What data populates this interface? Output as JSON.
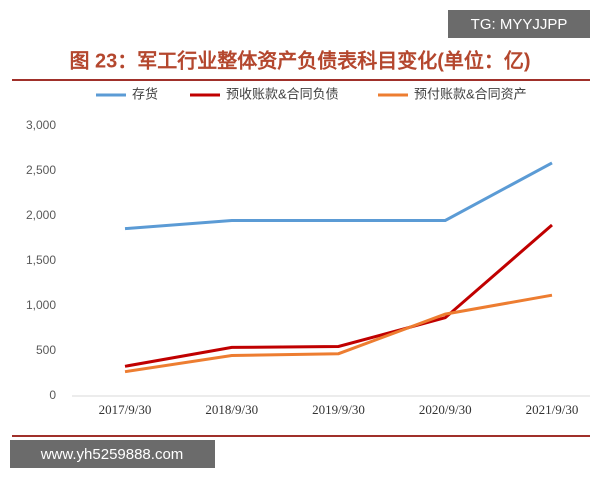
{
  "chart_data": {
    "type": "line",
    "title": "图 23：军工行业整体资产负债表科目变化(单位：亿)",
    "annotations": [
      "TG: MYYJJPP",
      "www.yh5259888.com"
    ],
    "categories": [
      "2017/9/30",
      "2018/9/30",
      "2019/9/30",
      "2020/9/30",
      "2021/9/30"
    ],
    "series": [
      {
        "name": "存货",
        "color": "#5b9bd5",
        "values": [
          1860,
          1950,
          1950,
          1950,
          2590
        ]
      },
      {
        "name": "预收账款&合同负债",
        "color": "#c00000",
        "values": [
          330,
          540,
          550,
          870,
          1900
        ]
      },
      {
        "name": "预付账款&合同资产",
        "color": "#ed7d31",
        "values": [
          270,
          450,
          470,
          910,
          1120
        ]
      }
    ],
    "ylim": [
      0,
      3000
    ],
    "yticks": [
      0,
      500,
      {
        "value": 1000,
        "label": "1,000"
      },
      {
        "value": 1500,
        "label": "1,500"
      },
      {
        "value": 2000,
        "label": "2,000"
      },
      {
        "value": 2500,
        "label": "2,500"
      },
      {
        "value": 3000,
        "label": "3,000"
      }
    ],
    "grid": false
  }
}
